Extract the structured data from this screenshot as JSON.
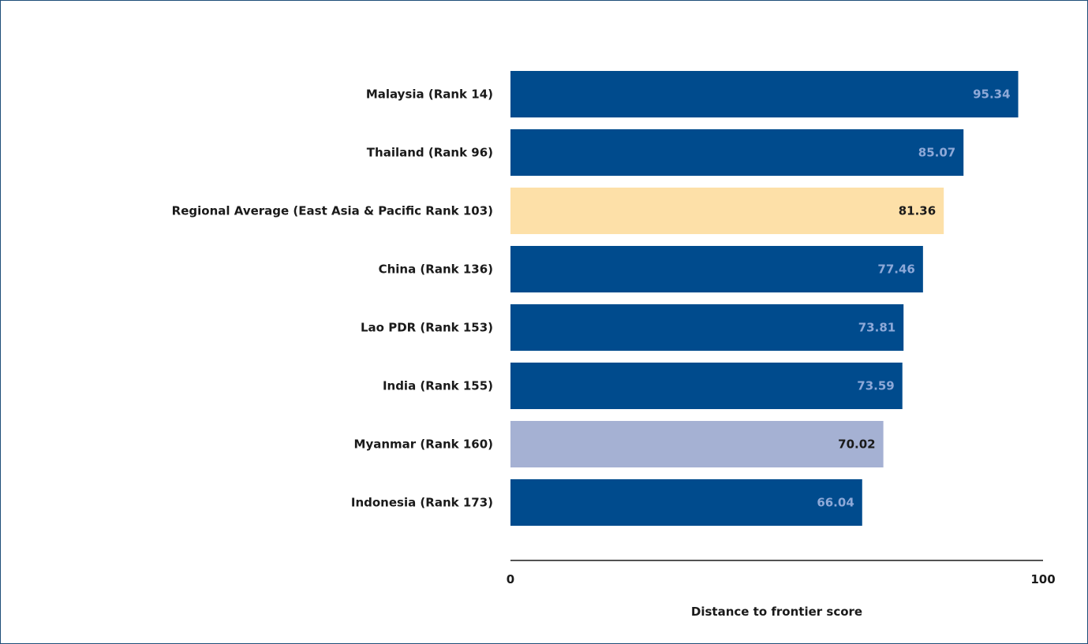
{
  "chart_data": {
    "type": "bar",
    "orientation": "horizontal",
    "categories": [
      "Malaysia (Rank 14)",
      "Thailand (Rank 96)",
      "Regional Average (East Asia & Pacific Rank 103)",
      "China (Rank 136)",
      "Lao PDR (Rank 153)",
      "India (Rank 155)",
      "Myanmar (Rank 160)",
      "Indonesia (Rank 173)"
    ],
    "values": [
      95.34,
      85.07,
      81.36,
      77.46,
      73.81,
      73.59,
      70.02,
      66.04
    ],
    "value_labels": [
      "95.34",
      "85.07",
      "81.36",
      "77.46",
      "73.81",
      "73.59",
      "70.02",
      "66.04"
    ],
    "bar_colors": [
      "#004b8d",
      "#004b8d",
      "#fde0a8",
      "#004b8d",
      "#004b8d",
      "#004b8d",
      "#a5b1d3",
      "#004b8d"
    ],
    "label_colors": [
      "#8ea9d8",
      "#8ea9d8",
      "#1a1a1a",
      "#8ea9d8",
      "#8ea9d8",
      "#8ea9d8",
      "#1a1a1a",
      "#8ea9d8"
    ],
    "xlabel": "Distance to frontier score",
    "xlim": [
      0,
      100
    ],
    "x_ticks": [
      "0",
      "100"
    ],
    "grid": false,
    "legend": "none"
  }
}
